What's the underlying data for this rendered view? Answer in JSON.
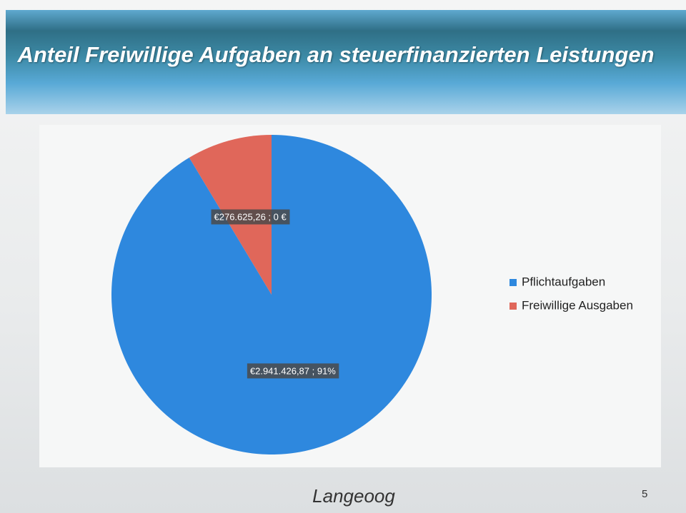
{
  "chart_data": {
    "type": "pie",
    "title": "Anteil Freiwillige Aufgaben an steuerfinanzierten Leistungen",
    "categories": [
      "Pflichtaufgaben",
      "Freiwillige Ausgaben"
    ],
    "values": [
      2941426.87,
      276625.26
    ],
    "value_labels": [
      "€2.941.426,87 ; 91%",
      "€276.625,26 ; 0 €"
    ],
    "colors": [
      "#2e88de",
      "#e0675a"
    ],
    "legend": "right"
  },
  "footer": {
    "logo": "Langeoog",
    "page_number": "5"
  }
}
